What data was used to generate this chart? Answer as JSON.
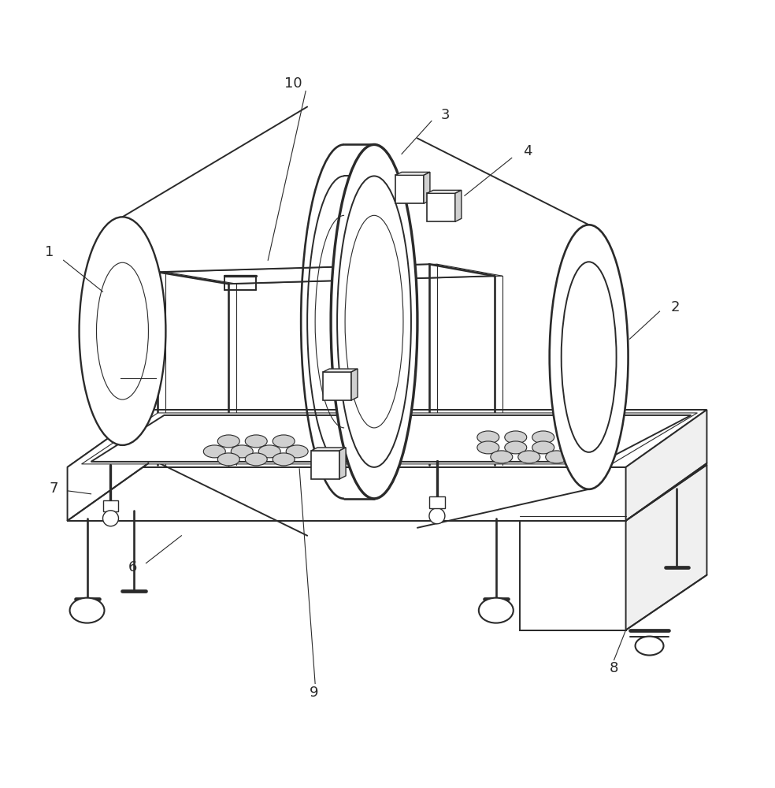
{
  "background_color": "#ffffff",
  "line_color": "#2a2a2a",
  "lw": 1.4,
  "tlw": 0.8,
  "figsize": [
    9.84,
    10.0
  ],
  "dpi": 100,
  "label_fontsize": 13
}
